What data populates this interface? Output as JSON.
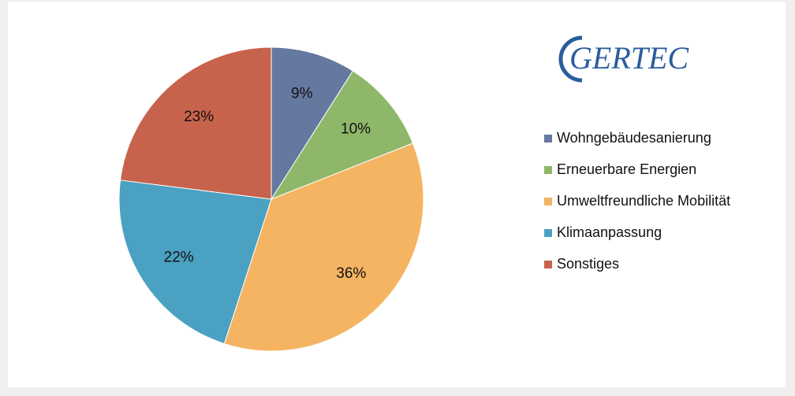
{
  "chart_data": {
    "type": "pie",
    "logo": "GERTEC",
    "categories": [
      "Wohngebäudesanierung",
      "Erneuerbare Energien",
      "Umweltfreundliche Mobilität",
      "Klimaanpassung",
      "Sonstiges"
    ],
    "values": [
      9,
      10,
      36,
      22,
      23
    ],
    "value_labels": [
      "9%",
      "10%",
      "36%",
      "22%",
      "23%"
    ],
    "colors": [
      "#65789f",
      "#8fb769",
      "#f5b462",
      "#4ba1c1",
      "#c7634c"
    ],
    "legend": "right"
  }
}
